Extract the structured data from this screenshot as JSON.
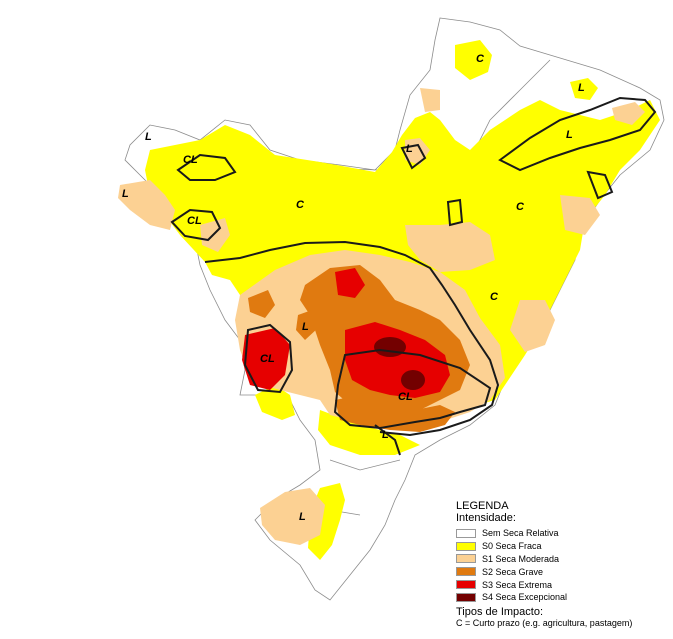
{
  "legend": {
    "title": "LEGENDA",
    "subtitle": "Intensidade:",
    "items": [
      {
        "label": "Sem Seca Relativa",
        "color": "#ffffff"
      },
      {
        "label": "S0 Seca Fraca",
        "color": "#ffff00"
      },
      {
        "label": "S1 Seca Moderada",
        "color": "#fcd193"
      },
      {
        "label": "S2 Seca Grave",
        "color": "#e07a10"
      },
      {
        "label": "S3 Seca Extrema",
        "color": "#e60000"
      },
      {
        "label": "S4 Seca Excepcional",
        "color": "#730000"
      }
    ],
    "impact_title": "Tipos de Impacto:",
    "impact_c": "C = Curto prazo (e.g. agricultura, pastagem)"
  },
  "map_labels": {
    "c1": "C",
    "c2": "C",
    "c3": "C",
    "c4": "C",
    "cl1": "CL",
    "cl2": "CL",
    "cl3": "CL",
    "cl4": "CL",
    "l1": "L",
    "l2": "L",
    "l3": "L",
    "l4": "L",
    "l5": "L",
    "l6": "L",
    "l7": "L",
    "l8": "L"
  }
}
